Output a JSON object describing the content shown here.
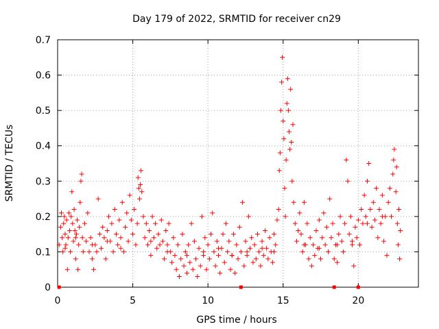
{
  "chart_data": {
    "type": "scatter",
    "title": "Day 179 of 2022, SRMTID for receiver cn29",
    "xlabel": "GPS time / hours",
    "ylabel": "SRMTID / TECUs",
    "xlim": [
      0,
      24
    ],
    "ylim": [
      0,
      0.7
    ],
    "xticks": [
      0,
      5,
      10,
      15,
      20
    ],
    "yticks": [
      0,
      0.1,
      0.2,
      0.3,
      0.4,
      0.5,
      0.6,
      0.7
    ],
    "grid": true,
    "marker": "+",
    "color": "#ff0000",
    "zero_markers_x": [
      0.1,
      12.2,
      18.4,
      20.0
    ],
    "series": [
      {
        "name": "SRMTID",
        "points": [
          [
            0.1,
            0.12
          ],
          [
            0.2,
            0.17
          ],
          [
            0.25,
            0.21
          ],
          [
            0.3,
            0.14
          ],
          [
            0.35,
            0.1
          ],
          [
            0.4,
            0.18
          ],
          [
            0.45,
            0.2
          ],
          [
            0.5,
            0.15
          ],
          [
            0.55,
            0.12
          ],
          [
            0.6,
            0.19
          ],
          [
            0.65,
            0.05
          ],
          [
            0.7,
            0.14
          ],
          [
            0.75,
            0.21
          ],
          [
            0.8,
            0.16
          ],
          [
            0.85,
            0.1
          ],
          [
            0.9,
            0.2
          ],
          [
            0.95,
            0.27
          ],
          [
            1.0,
            0.18
          ],
          [
            1.05,
            0.13
          ],
          [
            1.1,
            0.22
          ],
          [
            1.15,
            0.16
          ],
          [
            1.2,
            0.08
          ],
          [
            1.25,
            0.15
          ],
          [
            1.3,
            0.19
          ],
          [
            1.35,
            0.05
          ],
          [
            1.4,
            0.12
          ],
          [
            1.45,
            0.17
          ],
          [
            1.5,
            0.24
          ],
          [
            1.55,
            0.3
          ],
          [
            1.6,
            0.32
          ],
          [
            1.65,
            0.14
          ],
          [
            1.7,
            0.1
          ],
          [
            1.8,
            0.18
          ],
          [
            1.9,
            0.13
          ],
          [
            2.0,
            0.21
          ],
          [
            2.1,
            0.1
          ],
          [
            2.2,
            0.14
          ],
          [
            2.3,
            0.08
          ],
          [
            2.4,
            0.05
          ],
          [
            2.5,
            0.12
          ],
          [
            2.6,
            0.1
          ],
          [
            2.7,
            0.25
          ],
          [
            2.8,
            0.15
          ],
          [
            2.9,
            0.11
          ],
          [
            3.0,
            0.17
          ],
          [
            3.1,
            0.14
          ],
          [
            3.2,
            0.08
          ],
          [
            3.3,
            0.16
          ],
          [
            3.4,
            0.2
          ],
          [
            3.5,
            0.13
          ],
          [
            3.6,
            0.18
          ],
          [
            3.7,
            0.1
          ],
          [
            3.8,
            0.22
          ],
          [
            3.9,
            0.15
          ],
          [
            4.0,
            0.12
          ],
          [
            4.1,
            0.19
          ],
          [
            4.2,
            0.14
          ],
          [
            4.3,
            0.24
          ],
          [
            4.4,
            0.1
          ],
          [
            4.5,
            0.17
          ],
          [
            4.6,
            0.21
          ],
          [
            4.7,
            0.13
          ],
          [
            4.8,
            0.26
          ],
          [
            4.9,
            0.19
          ],
          [
            5.0,
            0.15
          ],
          [
            5.1,
            0.22
          ],
          [
            5.2,
            0.12
          ],
          [
            5.3,
            0.18
          ],
          [
            5.35,
            0.31
          ],
          [
            5.4,
            0.28
          ],
          [
            5.45,
            0.25
          ],
          [
            5.5,
            0.29
          ],
          [
            5.55,
            0.33
          ],
          [
            5.6,
            0.27
          ],
          [
            5.7,
            0.2
          ],
          [
            5.8,
            0.14
          ],
          [
            5.9,
            0.18
          ],
          [
            6.0,
            0.12
          ],
          [
            6.1,
            0.16
          ],
          [
            6.2,
            0.09
          ],
          [
            6.3,
            0.2
          ],
          [
            6.4,
            0.14
          ],
          [
            6.5,
            0.18
          ],
          [
            6.6,
            0.11
          ],
          [
            6.7,
            0.15
          ],
          [
            6.8,
            0.12
          ],
          [
            6.9,
            0.19
          ],
          [
            7.0,
            0.13
          ],
          [
            7.1,
            0.08
          ],
          [
            7.2,
            0.16
          ],
          [
            7.3,
            0.12
          ],
          [
            7.4,
            0.18
          ],
          [
            7.5,
            0.1
          ],
          [
            7.6,
            0.07
          ],
          [
            7.7,
            0.14
          ],
          [
            7.8,
            0.09
          ],
          [
            7.9,
            0.05
          ],
          [
            8.0,
            0.12
          ],
          [
            8.1,
            0.03
          ],
          [
            8.2,
            0.08
          ],
          [
            8.3,
            0.15
          ],
          [
            8.4,
            0.06
          ],
          [
            8.5,
            0.1
          ],
          [
            8.6,
            0.04
          ],
          [
            8.7,
            0.12
          ],
          [
            8.8,
            0.07
          ],
          [
            8.9,
            0.18
          ],
          [
            9.0,
            0.05
          ],
          [
            9.1,
            0.13
          ],
          [
            9.2,
            0.08
          ],
          [
            9.3,
            0.03
          ],
          [
            9.4,
            0.11
          ],
          [
            9.5,
            0.06
          ],
          [
            9.6,
            0.2
          ],
          [
            9.7,
            0.09
          ],
          [
            9.8,
            0.14
          ],
          [
            9.9,
            0.05
          ],
          [
            10.0,
            0.12
          ],
          [
            10.1,
            0.08
          ],
          [
            10.2,
            0.15
          ],
          [
            10.3,
            0.21
          ],
          [
            10.4,
            0.1
          ],
          [
            10.5,
            0.06
          ],
          [
            10.6,
            0.13
          ],
          [
            10.7,
            0.09
          ],
          [
            10.8,
            0.04
          ],
          [
            10.9,
            0.11
          ],
          [
            11.0,
            0.15
          ],
          [
            11.1,
            0.07
          ],
          [
            11.2,
            0.18
          ],
          [
            11.3,
            0.1
          ],
          [
            11.4,
            0.13
          ],
          [
            11.5,
            0.05
          ],
          [
            11.6,
            0.09
          ],
          [
            11.7,
            0.15
          ],
          [
            11.8,
            0.04
          ],
          [
            11.9,
            0.12
          ],
          [
            12.0,
            0.08
          ],
          [
            12.1,
            0.17
          ],
          [
            12.2,
            0.1
          ],
          [
            12.3,
            0.24
          ],
          [
            12.4,
            0.06
          ],
          [
            12.5,
            0.13
          ],
          [
            12.6,
            0.09
          ],
          [
            12.7,
            0.2
          ],
          [
            12.8,
            0.11
          ],
          [
            12.9,
            0.14
          ],
          [
            13.0,
            0.07
          ],
          [
            13.1,
            0.12
          ],
          [
            13.2,
            0.08
          ],
          [
            13.3,
            0.15
          ],
          [
            13.4,
            0.1
          ],
          [
            13.5,
            0.06
          ],
          [
            13.6,
            0.13
          ],
          [
            13.7,
            0.09
          ],
          [
            13.8,
            0.16
          ],
          [
            13.9,
            0.11
          ],
          [
            14.0,
            0.08
          ],
          [
            14.1,
            0.14
          ],
          [
            14.2,
            0.1
          ],
          [
            14.3,
            0.07
          ],
          [
            14.4,
            0.15
          ],
          [
            14.5,
            0.12
          ],
          [
            14.6,
            0.19
          ],
          [
            14.7,
            0.22
          ],
          [
            14.75,
            0.33
          ],
          [
            14.8,
            0.38
          ],
          [
            14.85,
            0.5
          ],
          [
            14.9,
            0.58
          ],
          [
            14.95,
            0.65
          ],
          [
            15.0,
            0.47
          ],
          [
            15.05,
            0.42
          ],
          [
            15.1,
            0.28
          ],
          [
            15.15,
            0.2
          ],
          [
            15.2,
            0.36
          ],
          [
            15.25,
            0.52
          ],
          [
            15.3,
            0.59
          ],
          [
            15.35,
            0.5
          ],
          [
            15.4,
            0.44
          ],
          [
            15.45,
            0.39
          ],
          [
            15.5,
            0.56
          ],
          [
            15.55,
            0.41
          ],
          [
            15.6,
            0.3
          ],
          [
            15.65,
            0.46
          ],
          [
            15.7,
            0.24
          ],
          [
            15.8,
            0.18
          ],
          [
            15.9,
            0.13
          ],
          [
            16.0,
            0.16
          ],
          [
            16.1,
            0.21
          ],
          [
            16.2,
            0.15
          ],
          [
            16.3,
            0.1
          ],
          [
            16.4,
            0.24
          ],
          [
            16.5,
            0.12
          ],
          [
            16.6,
            0.18
          ],
          [
            16.7,
            0.08
          ],
          [
            16.8,
            0.14
          ],
          [
            16.9,
            0.06
          ],
          [
            17.0,
            0.12
          ],
          [
            17.1,
            0.09
          ],
          [
            17.2,
            0.16
          ],
          [
            17.3,
            0.11
          ],
          [
            17.4,
            0.19
          ],
          [
            17.5,
            0.08
          ],
          [
            17.6,
            0.14
          ],
          [
            17.7,
            0.21
          ],
          [
            17.8,
            0.12
          ],
          [
            17.9,
            0.17
          ],
          [
            18.0,
            0.1
          ],
          [
            18.1,
            0.25
          ],
          [
            18.2,
            0.14
          ],
          [
            18.3,
            0.18
          ],
          [
            18.4,
            0.08
          ],
          [
            18.5,
            0.12
          ],
          [
            18.6,
            0.07
          ],
          [
            18.7,
            0.15
          ],
          [
            18.8,
            0.2
          ],
          [
            18.9,
            0.13
          ],
          [
            19.0,
            0.1
          ],
          [
            19.1,
            0.18
          ],
          [
            19.2,
            0.36
          ],
          [
            19.3,
            0.3
          ],
          [
            19.4,
            0.15
          ],
          [
            19.5,
            0.2
          ],
          [
            19.6,
            0.12
          ],
          [
            19.7,
            0.06
          ],
          [
            19.8,
            0.17
          ],
          [
            19.9,
            0.14
          ],
          [
            20.0,
            0.19
          ],
          [
            20.1,
            0.12
          ],
          [
            20.2,
            0.22
          ],
          [
            20.3,
            0.18
          ],
          [
            20.4,
            0.26
          ],
          [
            20.5,
            0.2
          ],
          [
            20.6,
            0.3
          ],
          [
            20.7,
            0.35
          ],
          [
            20.8,
            0.22
          ],
          [
            20.9,
            0.17
          ],
          [
            21.0,
            0.24
          ],
          [
            21.1,
            0.19
          ],
          [
            21.2,
            0.28
          ],
          [
            21.3,
            0.14
          ],
          [
            21.4,
            0.22
          ],
          [
            21.5,
            0.18
          ],
          [
            21.6,
            0.26
          ],
          [
            21.7,
            0.13
          ],
          [
            21.8,
            0.2
          ],
          [
            21.9,
            0.09
          ],
          [
            22.0,
            0.24
          ],
          [
            22.1,
            0.28
          ],
          [
            22.2,
            0.2
          ],
          [
            22.3,
            0.32
          ],
          [
            22.35,
            0.36
          ],
          [
            22.4,
            0.39
          ],
          [
            22.5,
            0.27
          ],
          [
            22.55,
            0.34
          ],
          [
            22.6,
            0.18
          ],
          [
            22.65,
            0.12
          ],
          [
            22.7,
            0.22
          ],
          [
            22.75,
            0.08
          ],
          [
            22.8,
            0.16
          ],
          [
            0.5,
            0.11
          ],
          [
            1.2,
            0.14
          ],
          [
            2.3,
            0.12
          ],
          [
            3.3,
            0.13
          ],
          [
            4.2,
            0.11
          ],
          [
            6.2,
            0.13
          ],
          [
            7.3,
            0.1
          ],
          [
            8.6,
            0.09
          ],
          [
            9.7,
            0.1
          ],
          [
            10.7,
            0.11
          ],
          [
            11.6,
            0.09
          ],
          [
            12.6,
            0.1
          ],
          [
            13.6,
            0.11
          ],
          [
            14.4,
            0.1
          ],
          [
            16.4,
            0.12
          ],
          [
            17.4,
            0.11
          ],
          [
            18.6,
            0.12
          ],
          [
            19.6,
            0.13
          ],
          [
            20.6,
            0.18
          ],
          [
            21.6,
            0.2
          ]
        ]
      }
    ]
  }
}
